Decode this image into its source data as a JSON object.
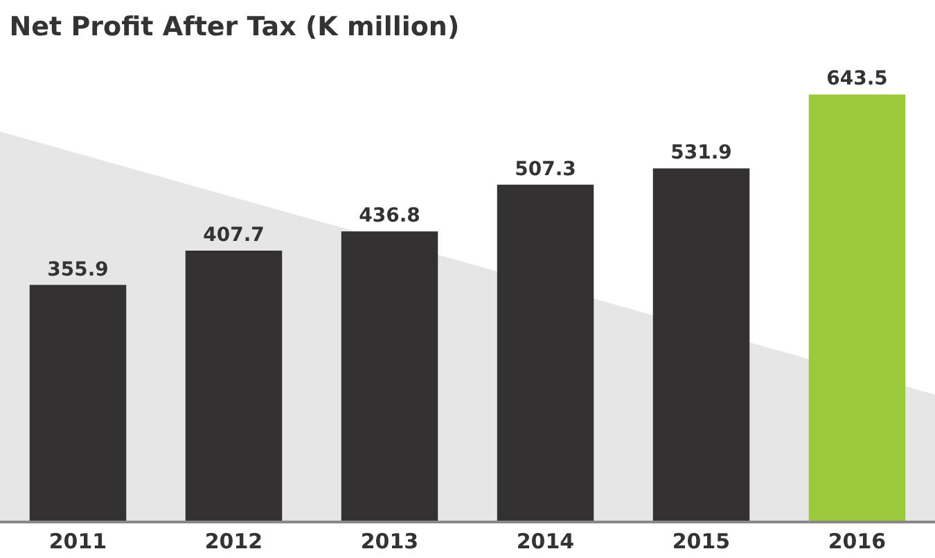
{
  "chart_data": {
    "type": "bar",
    "title": "Net Profit After Tax (K million)",
    "categories": [
      "2011",
      "2012",
      "2013",
      "2014",
      "2015",
      "2016"
    ],
    "values": [
      355.9,
      407.7,
      436.8,
      507.3,
      531.9,
      643.5
    ],
    "colors": [
      "#333132",
      "#333132",
      "#333132",
      "#333132",
      "#333132",
      "#9aca3c"
    ],
    "data_labels": true,
    "legend": false
  }
}
